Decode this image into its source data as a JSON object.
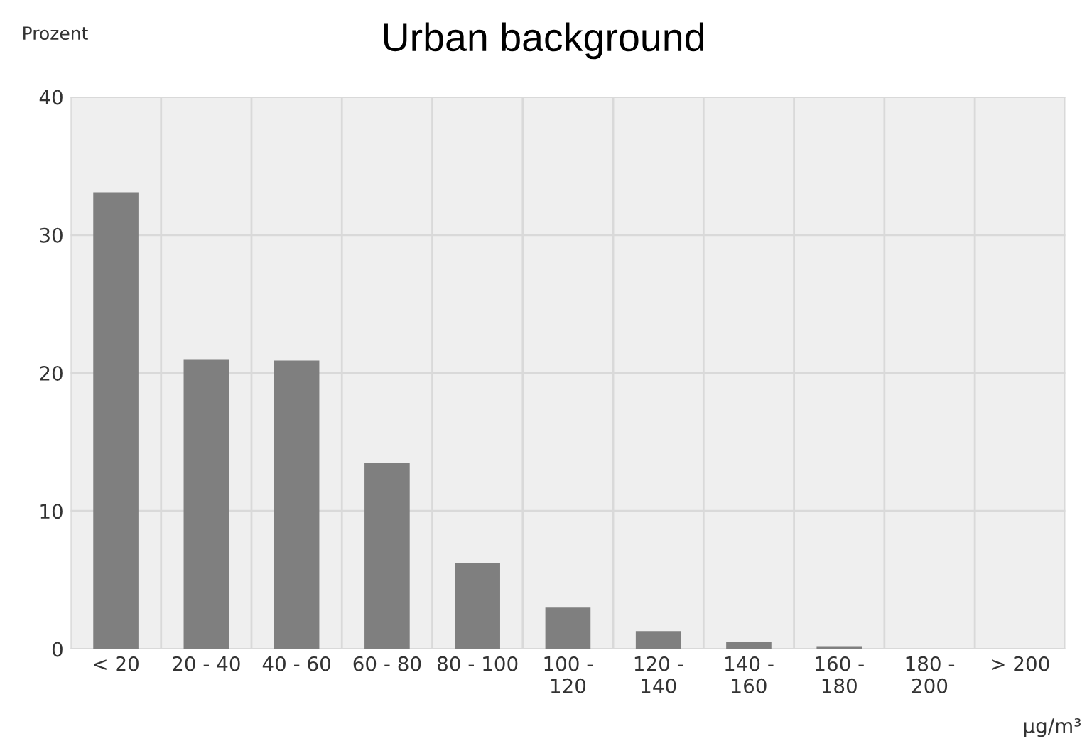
{
  "chart_data": {
    "type": "bar",
    "title": "Urban background",
    "ylabel": "Prozent",
    "xlabel": "µg/m³",
    "categories": [
      "< 20",
      "20 - 40",
      "40 - 60",
      "60 - 80",
      "80 - 100",
      "100 -\n120",
      "120 -\n140",
      "140 -\n160",
      "160 -\n180",
      "180 -\n200",
      "> 200"
    ],
    "values": [
      33.1,
      21.0,
      20.9,
      13.5,
      6.2,
      3.0,
      1.3,
      0.5,
      0.2,
      0,
      0
    ],
    "color": "#7f7f7f",
    "ylim": [
      0,
      40
    ],
    "yticks": [
      0,
      10,
      20,
      30,
      40
    ],
    "grid": true
  }
}
